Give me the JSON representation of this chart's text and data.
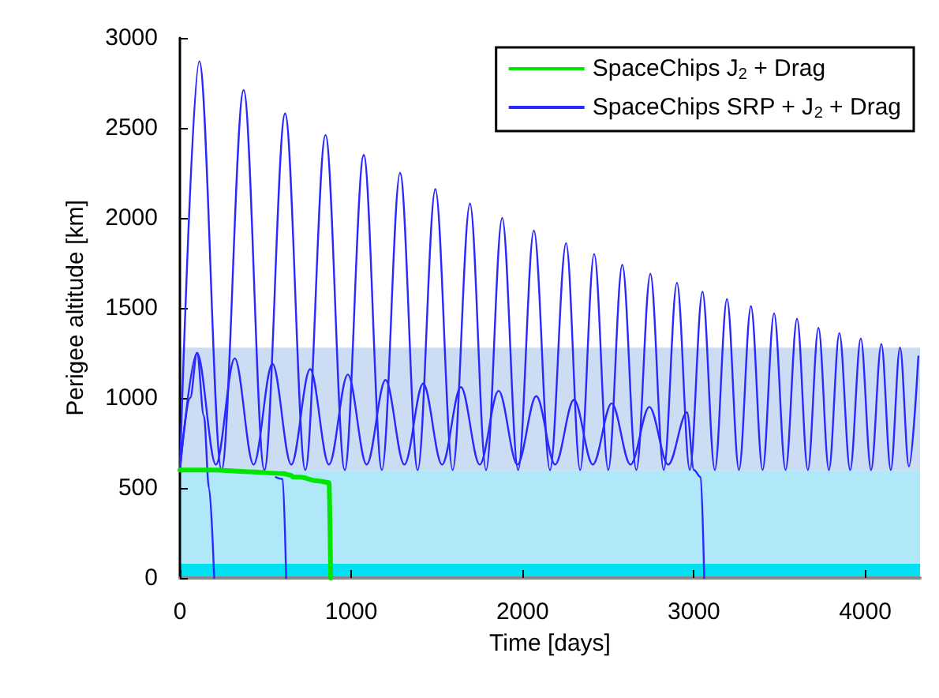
{
  "chart_data": {
    "type": "line",
    "xlabel": "Time [days]",
    "ylabel": "Perigee altitude [km]",
    "xlim": [
      0,
      4320
    ],
    "xticks": [
      0,
      1000,
      2000,
      3000,
      4000
    ],
    "ylim": [
      0,
      3000
    ],
    "yticks": [
      0,
      500,
      1000,
      1500,
      2000,
      2500,
      3000
    ],
    "grid": false,
    "legend": "top right",
    "marker": "none",
    "line_style": "solid",
    "bands": [
      {
        "axis": "y",
        "from": 0,
        "to": 80,
        "color": "#00e0f0"
      },
      {
        "axis": "y",
        "from": 80,
        "to": 600,
        "color": "#b0e8fa"
      },
      {
        "axis": "y",
        "from": 600,
        "to": 1280,
        "color": "#ccdcf2"
      }
    ],
    "series": [
      {
        "name": "SpaceChips J$_{2}$ + Drag",
        "color": "#00e600",
        "x": [
          0,
          200,
          400,
          600,
          650,
          660,
          700,
          800,
          870,
          880
        ],
        "values": [
          600,
          600,
          590,
          580,
          570,
          560,
          560,
          540,
          530,
          0
        ]
      },
      {
        "name": "SpaceChips SRP + J$_{2}$ + Drag",
        "color": "#2828ff",
        "x": [
          0,
          113,
          243,
          372,
          493,
          614,
          732,
          850,
          962,
          1073,
          1179,
          1285,
          1388,
          1491,
          1592,
          1693,
          1787,
          1881,
          1974,
          2066,
          2160,
          2254,
          2336,
          2418,
          2500,
          2582,
          2664,
          2746,
          2824,
          2901,
          2976,
          3050,
          3122,
          3193,
          3263,
          3333,
          3401,
          3468,
          3535,
          3602,
          3665,
          3727,
          3788,
          3849,
          3912,
          3974,
          4034,
          4094,
          4149,
          4203,
          4255,
          4310
        ],
        "values": [
          600,
          2870,
          600,
          2710,
          600,
          2580,
          600,
          2460,
          600,
          2350,
          600,
          2250,
          600,
          2160,
          600,
          2080,
          600,
          2000,
          600,
          1930,
          600,
          1860,
          600,
          1800,
          600,
          1740,
          600,
          1690,
          600,
          1640,
          600,
          1590,
          600,
          1550,
          600,
          1510,
          600,
          1470,
          600,
          1440,
          600,
          1390,
          600,
          1360,
          600,
          1330,
          600,
          1300,
          600,
          1280,
          620,
          1230
        ]
      },
      {
        "color": "#2828ff",
        "x": [
          0,
          100,
          210,
          320,
          430,
          540,
          650,
          760,
          870,
          980,
          1090,
          1200,
          1310,
          1420,
          1530,
          1640,
          1750,
          1860,
          1970,
          2080,
          2190,
          2300,
          2410,
          2520,
          2630,
          2740,
          2850,
          2960,
          3000,
          3040,
          3060
        ],
        "values": [
          600,
          1250,
          630,
          1220,
          630,
          1190,
          630,
          1160,
          630,
          1130,
          630,
          1100,
          630,
          1080,
          630,
          1060,
          630,
          1040,
          630,
          1010,
          630,
          990,
          630,
          970,
          630,
          950,
          630,
          920,
          600,
          560,
          0
        ]
      },
      {
        "color": "#2828ff",
        "x": [
          0,
          60,
          100,
          140,
          170,
          200
        ],
        "values": [
          600,
          1000,
          1250,
          900,
          500,
          0
        ]
      },
      {
        "color": "#2828ff",
        "x": [
          560,
          600,
          620
        ],
        "values": [
          560,
          550,
          0
        ]
      }
    ]
  }
}
